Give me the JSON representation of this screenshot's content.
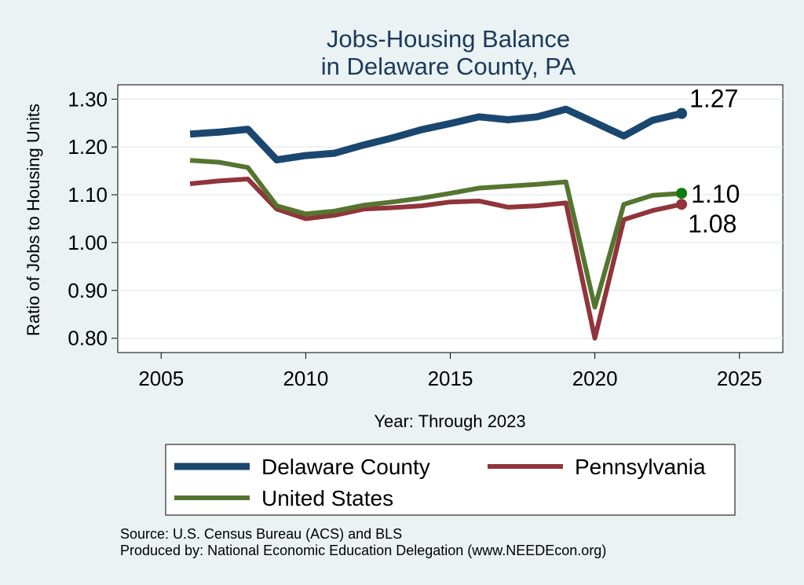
{
  "chart_data": {
    "type": "line",
    "title": [
      "Jobs-Housing Balance",
      "in Delaware County, PA"
    ],
    "xlabel": "Year: Through 2023",
    "ylabel": "Ratio of Jobs to Housing Units",
    "xlim": [
      2003.5,
      2026.5
    ],
    "ylim": [
      0.77,
      1.33
    ],
    "xticks": [
      2005,
      2010,
      2015,
      2020,
      2025
    ],
    "yticks": [
      0.8,
      0.9,
      1.0,
      1.1,
      1.2,
      1.3
    ],
    "ytick_labels": [
      "0.80",
      "0.90",
      "1.00",
      "1.10",
      "1.20",
      "1.30"
    ],
    "grid": true,
    "legend_position": "bottom",
    "x": [
      2006,
      2007,
      2008,
      2009,
      2010,
      2011,
      2012,
      2013,
      2014,
      2015,
      2016,
      2017,
      2018,
      2019,
      2020,
      2021,
      2022,
      2023
    ],
    "series": [
      {
        "name": "Delaware County",
        "color": "#1a476f",
        "values": [
          1.227,
          1.231,
          1.237,
          1.173,
          1.182,
          1.187,
          1.204,
          1.219,
          1.236,
          1.249,
          1.263,
          1.257,
          1.263,
          1.279,
          1.251,
          1.223,
          1.256,
          1.27
        ],
        "end_label": "1.27"
      },
      {
        "name": "Pennsylvania",
        "color": "#90353b",
        "values": [
          1.123,
          1.129,
          1.133,
          1.07,
          1.05,
          1.057,
          1.07,
          1.073,
          1.077,
          1.085,
          1.087,
          1.074,
          1.077,
          1.083,
          0.8,
          1.048,
          1.067,
          1.08
        ],
        "end_label": "1.08"
      },
      {
        "name": "United States",
        "color": "#55752f",
        "values": [
          1.172,
          1.168,
          1.157,
          1.077,
          1.06,
          1.066,
          1.078,
          1.085,
          1.093,
          1.103,
          1.114,
          1.118,
          1.122,
          1.127,
          0.865,
          1.08,
          1.099,
          1.103
        ],
        "end_label": "1.10"
      }
    ]
  },
  "source_lines": [
    "Source: U.S. Census Bureau (ACS) and BLS",
    "Produced by: National Economic Education Delegation (www.NEEDEcon.org)"
  ]
}
